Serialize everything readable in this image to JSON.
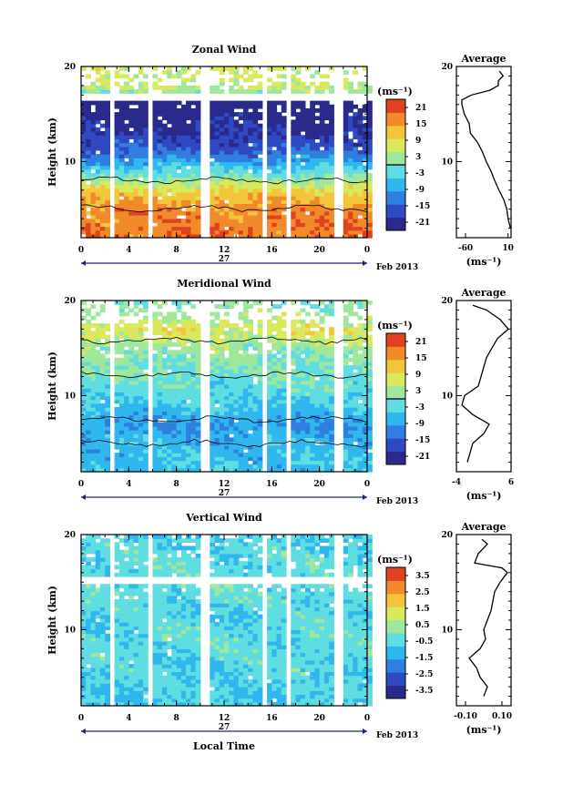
{
  "figure": {
    "date_label": "Feb 2013",
    "day_label": "27",
    "xlabel": "Local Time",
    "x_ticks": [
      "0",
      "4",
      "8",
      "12",
      "16",
      "20",
      "0"
    ],
    "unit_label": "(ms⁻¹)"
  },
  "chart_data": [
    {
      "type": "heatmap",
      "title": "Zonal Wind",
      "ylabel": "Height (km)",
      "xlabel": "",
      "xlim": [
        0,
        24
      ],
      "ylim": [
        2,
        20
      ],
      "y_ticks": [
        "10",
        "20"
      ],
      "colorbar": {
        "unit": "(ms⁻¹)",
        "ticks": [
          "21",
          "15",
          "9",
          "3",
          "-3",
          "-9",
          "-15",
          "-21"
        ],
        "range": [
          -24,
          24
        ]
      },
      "profile_by_height": [
        [
          3,
          18
        ],
        [
          5,
          17
        ],
        [
          7,
          10
        ],
        [
          9,
          -3
        ],
        [
          11,
          -14
        ],
        [
          13,
          -20
        ],
        [
          15,
          -22
        ],
        [
          16.5,
          -28
        ],
        [
          17.5,
          5
        ],
        [
          19,
          6
        ]
      ],
      "average": {
        "title": "Average",
        "xticks": [
          "-60",
          "10"
        ],
        "xlabel": "(ms⁻¹)",
        "xlim": [
          -75,
          15
        ],
        "height": [
          3,
          4,
          5,
          6,
          7,
          8,
          9,
          10,
          11,
          12,
          13,
          14,
          15,
          16,
          16.5,
          17,
          17.5,
          18,
          18.5,
          19,
          19.5
        ],
        "value": [
          14,
          10,
          8,
          3,
          -5,
          -12,
          -18,
          -26,
          -32,
          -40,
          -52,
          -54,
          -62,
          -66,
          -66,
          -50,
          -20,
          -6,
          -6,
          2,
          -4
        ]
      }
    },
    {
      "type": "heatmap",
      "title": "Meridional Wind",
      "ylabel": "Height (km)",
      "xlabel": "",
      "xlim": [
        0,
        24
      ],
      "ylim": [
        2,
        20
      ],
      "y_ticks": [
        "10",
        "20"
      ],
      "colorbar": {
        "unit": "(ms⁻¹)",
        "ticks": [
          "21",
          "15",
          "9",
          "3",
          "-3",
          "-9",
          "-15",
          "-21"
        ],
        "range": [
          -24,
          24
        ]
      },
      "profile_by_height": [
        [
          3,
          -6
        ],
        [
          5,
          -7
        ],
        [
          7,
          -10
        ],
        [
          9,
          -5
        ],
        [
          11,
          -2
        ],
        [
          13,
          0
        ],
        [
          15,
          2
        ],
        [
          17,
          8
        ],
        [
          19,
          1
        ]
      ],
      "average": {
        "title": "Average",
        "xticks": [
          "-4",
          "6"
        ],
        "xlabel": "(ms⁻¹)",
        "xlim": [
          -4,
          6
        ],
        "height": [
          3,
          4,
          5,
          6,
          7,
          8,
          9,
          10,
          11,
          12,
          13,
          14,
          15,
          16,
          17,
          18,
          19,
          19.5
        ],
        "value": [
          -2,
          -1.5,
          -1,
          1,
          2,
          -1,
          -3,
          -2.5,
          0,
          0.5,
          1,
          1.5,
          2.5,
          3.5,
          5.5,
          4,
          1.5,
          -1
        ]
      }
    },
    {
      "type": "heatmap",
      "title": "Vertical Wind",
      "ylabel": "Height (km)",
      "xlabel": "Local Time",
      "xlim": [
        0,
        24
      ],
      "ylim": [
        2,
        20
      ],
      "y_ticks": [
        "10",
        "20"
      ],
      "colorbar": {
        "unit": "(ms⁻¹)",
        "ticks": [
          "3.5",
          "2.5",
          "1.5",
          "0.5",
          "-0.5",
          "-1.5",
          "-2.5",
          "-3.5"
        ],
        "range": [
          -4,
          4
        ]
      },
      "profile_by_height": [
        [
          3,
          -0.8
        ],
        [
          6,
          -0.6
        ],
        [
          9,
          -0.4
        ],
        [
          12,
          -0.6
        ],
        [
          15,
          -0.3
        ],
        [
          18,
          -0.5
        ],
        [
          19.5,
          -0.7
        ]
      ],
      "average": {
        "title": "Average",
        "xticks": [
          "-0.10",
          "0.10"
        ],
        "xlabel": "(ms⁻¹)",
        "xlim": [
          -0.15,
          0.15
        ],
        "height": [
          3,
          4,
          5,
          6,
          7,
          8,
          9,
          10,
          11,
          12,
          13,
          14,
          15,
          16,
          16.5,
          17,
          18,
          19,
          19.5
        ],
        "value": [
          0,
          0.02,
          -0.02,
          -0.04,
          -0.08,
          -0.02,
          0.01,
          0.0,
          0.02,
          0.04,
          0.05,
          0.06,
          0.09,
          0.13,
          0.1,
          -0.05,
          -0.03,
          0.02,
          -0.01
        ]
      }
    }
  ]
}
